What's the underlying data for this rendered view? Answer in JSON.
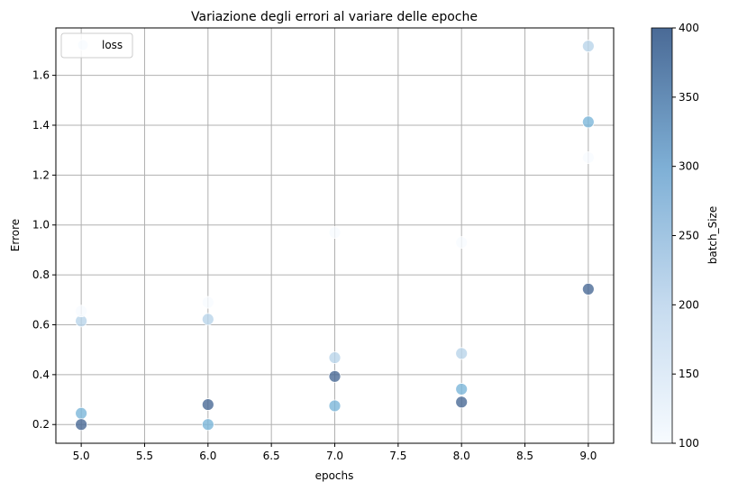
{
  "chart_data": {
    "type": "scatter",
    "title": "Variazione degli errori al variare delle epoche",
    "xlabel": "epochs",
    "ylabel": "Errore",
    "xlim": [
      4.8,
      9.2
    ],
    "ylim": [
      0.125,
      1.79
    ],
    "xticks": [
      "5.0",
      "5.5",
      "6.0",
      "6.5",
      "7.0",
      "7.5",
      "8.0",
      "8.5",
      "9.0"
    ],
    "yticks": [
      "0.2",
      "0.4",
      "0.6",
      "0.8",
      "1.0",
      "1.2",
      "1.4",
      "1.6"
    ],
    "grid": true,
    "legend": {
      "position": "top-left",
      "entries": [
        "loss"
      ]
    },
    "colorbar": {
      "label": "batch_Size",
      "min": 100,
      "max": 400,
      "ticks": [
        "100",
        "150",
        "200",
        "250",
        "300",
        "350",
        "400"
      ],
      "colors": [
        "#f7fbff",
        "#c6dbef",
        "#9ecae1",
        "#6baed6",
        "#4a6a96"
      ]
    },
    "points": [
      {
        "x": 5,
        "y": 0.615,
        "c": 200
      },
      {
        "x": 5,
        "y": 0.245,
        "c": 300
      },
      {
        "x": 5,
        "y": 0.2,
        "c": 400
      },
      {
        "x": 5,
        "y": 0.655,
        "c": 100
      },
      {
        "x": 6,
        "y": 0.622,
        "c": 200
      },
      {
        "x": 6,
        "y": 0.28,
        "c": 400
      },
      {
        "x": 6,
        "y": 0.2,
        "c": 300
      },
      {
        "x": 6,
        "y": 0.69,
        "c": 100
      },
      {
        "x": 7,
        "y": 0.468,
        "c": 200
      },
      {
        "x": 7,
        "y": 0.393,
        "c": 400
      },
      {
        "x": 7,
        "y": 0.275,
        "c": 300
      },
      {
        "x": 7,
        "y": 0.97,
        "c": 100
      },
      {
        "x": 8,
        "y": 0.485,
        "c": 200
      },
      {
        "x": 8,
        "y": 0.342,
        "c": 300
      },
      {
        "x": 8,
        "y": 0.29,
        "c": 400
      },
      {
        "x": 8,
        "y": 0.93,
        "c": 100
      },
      {
        "x": 9,
        "y": 1.717,
        "c": 200
      },
      {
        "x": 9,
        "y": 1.413,
        "c": 300
      },
      {
        "x": 9,
        "y": 0.743,
        "c": 400
      },
      {
        "x": 9,
        "y": 1.27,
        "c": 100
      }
    ]
  }
}
